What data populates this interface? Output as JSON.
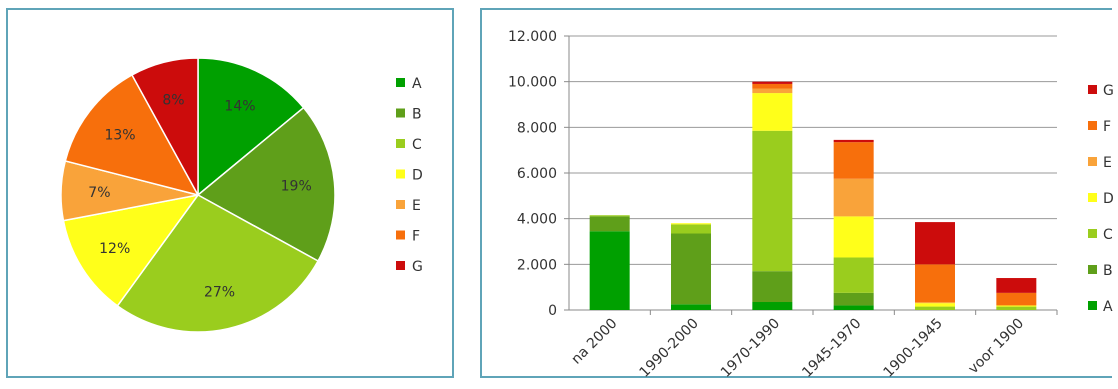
{
  "chart_data": [
    {
      "type": "pie",
      "categories": [
        "A",
        "B",
        "C",
        "D",
        "E",
        "F",
        "G"
      ],
      "values": [
        14,
        19,
        27,
        12,
        7,
        13,
        8
      ],
      "value_labels": [
        "14%",
        "19%",
        "27%",
        "12%",
        "7%",
        "13%",
        "8%"
      ],
      "colors": [
        "#00a000",
        "#5f9f1a",
        "#9acd1e",
        "#ffff1a",
        "#f9a33a",
        "#f76f0c",
        "#cc0c0c"
      ],
      "legend": {
        "position": "right",
        "entries": [
          "A",
          "B",
          "C",
          "D",
          "E",
          "F",
          "G"
        ]
      },
      "start_angle_deg": 0,
      "direction": "clockwise"
    },
    {
      "type": "bar",
      "stacked": true,
      "categories": [
        "na 2000",
        "1990-2000",
        "1970-1990",
        "1945-1970",
        "1900-1945",
        "voor 1900"
      ],
      "series": [
        {
          "name": "A",
          "color": "#00a000",
          "values": [
            3450,
            250,
            350,
            200,
            0,
            0
          ]
        },
        {
          "name": "B",
          "color": "#5f9f1a",
          "values": [
            650,
            3100,
            1350,
            550,
            0,
            0
          ]
        },
        {
          "name": "C",
          "color": "#9acd1e",
          "values": [
            50,
            400,
            6150,
            1550,
            150,
            150
          ]
        },
        {
          "name": "D",
          "color": "#ffff1a",
          "values": [
            0,
            50,
            1650,
            1800,
            150,
            50
          ]
        },
        {
          "name": "E",
          "color": "#f9a33a",
          "values": [
            0,
            0,
            200,
            1650,
            50,
            0
          ]
        },
        {
          "name": "F",
          "color": "#f76f0c",
          "values": [
            0,
            0,
            200,
            1600,
            1650,
            550
          ]
        },
        {
          "name": "G",
          "color": "#cc0c0c",
          "values": [
            0,
            0,
            100,
            100,
            1850,
            650
          ]
        }
      ],
      "yticks": [
        "0",
        "2.000",
        "4.000",
        "6.000",
        "8.000",
        "10.000",
        "12.000"
      ],
      "ylim": [
        0,
        12000
      ],
      "grid": true,
      "legend": {
        "position": "right",
        "order": "reversed"
      }
    }
  ]
}
